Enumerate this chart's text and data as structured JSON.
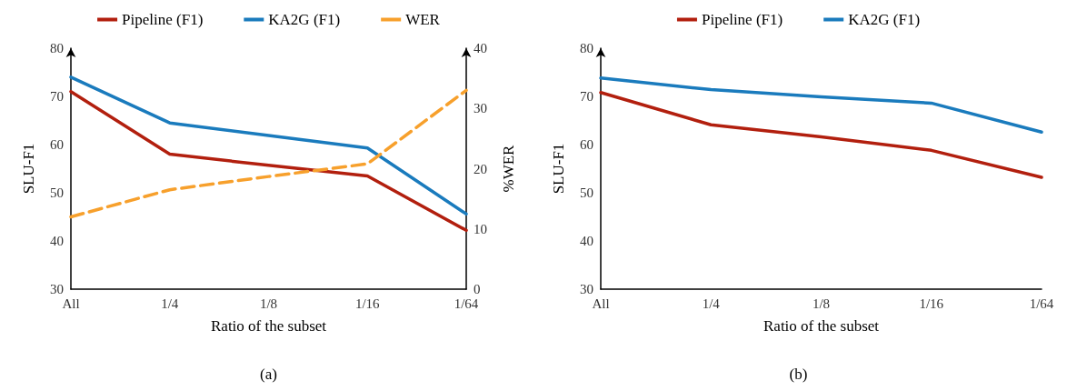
{
  "chart_data": [
    {
      "type": "line",
      "categories": [
        "All",
        "1/4",
        "1/8",
        "1/16",
        "1/64"
      ],
      "xlabel": "Ratio of the subset",
      "ylabel": "SLU-F1",
      "y2label": "%WER",
      "ylim": [
        30,
        80
      ],
      "yticks": [
        30,
        40,
        50,
        60,
        70,
        80
      ],
      "y2lim": [
        0,
        40
      ],
      "y2ticks": [
        0,
        10,
        20,
        30,
        40
      ],
      "legend": "top",
      "grid": false,
      "marker": "none",
      "annotations": [
        "(a)"
      ],
      "series": [
        {
          "name": "Pipeline (F1)",
          "color": "#b21f0e",
          "values": [
            71,
            58,
            55.7,
            53.5,
            42.2
          ]
        },
        {
          "name": "KA2G (F1)",
          "color": "#1a7bbd",
          "values": [
            74,
            64.5,
            61.9,
            59.3,
            45.6
          ]
        },
        {
          "name": "WER",
          "color": "#f7a02c",
          "axis": "y2",
          "line_style": "dashed",
          "values": [
            12,
            16.5,
            18.7,
            20.8,
            33
          ]
        }
      ]
    },
    {
      "type": "line",
      "categories": [
        "All",
        "1/4",
        "1/8",
        "1/16",
        "1/64"
      ],
      "xlabel": "Ratio of the subset",
      "ylabel": "SLU-F1",
      "ylim": [
        30,
        80
      ],
      "yticks": [
        30,
        40,
        50,
        60,
        70,
        80
      ],
      "legend": "top",
      "grid": false,
      "marker": "none",
      "annotations": [
        "(b)"
      ],
      "series": [
        {
          "name": "Pipeline (F1)",
          "color": "#b21f0e",
          "values": [
            70.8,
            64.1,
            61.6,
            58.8,
            53.2
          ]
        },
        {
          "name": "KA2G (F1)",
          "color": "#1a7bbd",
          "values": [
            73.8,
            71.4,
            69.9,
            68.6,
            62.6
          ]
        }
      ]
    }
  ]
}
